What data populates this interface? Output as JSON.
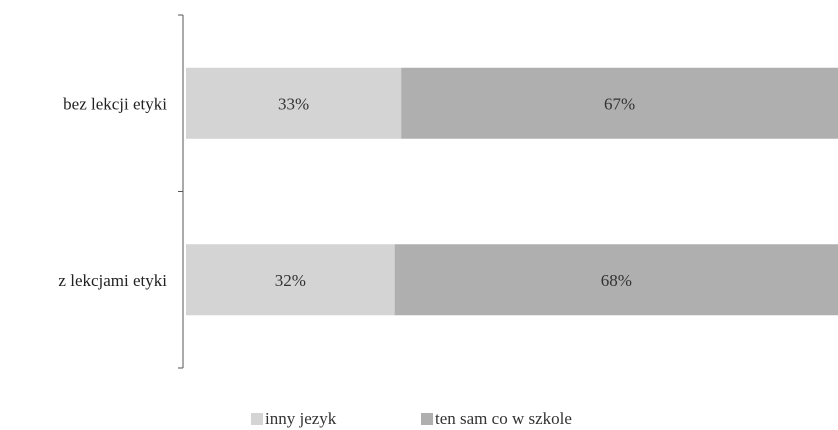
{
  "chart_data": {
    "type": "bar",
    "orientation": "horizontal",
    "stacked": true,
    "normalized": true,
    "categories": [
      "bez lekcji etyki",
      "z lekcjami etyki"
    ],
    "series": [
      {
        "name": "inny język",
        "values": [
          33,
          32
        ],
        "color": "#d4d4d4"
      },
      {
        "name": "ten sam co w szkole",
        "values": [
          67,
          68
        ],
        "color": "#afafaf"
      }
    ],
    "data_labels": [
      [
        "33%",
        "32%"
      ],
      [
        "67%",
        "68%"
      ]
    ],
    "xlim": [
      0,
      100
    ],
    "grid": false,
    "legend_position": "bottom",
    "legend_labels": [
      "inny jezyk",
      "ten sam co w szkole"
    ],
    "title": "",
    "xlabel": "",
    "ylabel": ""
  }
}
